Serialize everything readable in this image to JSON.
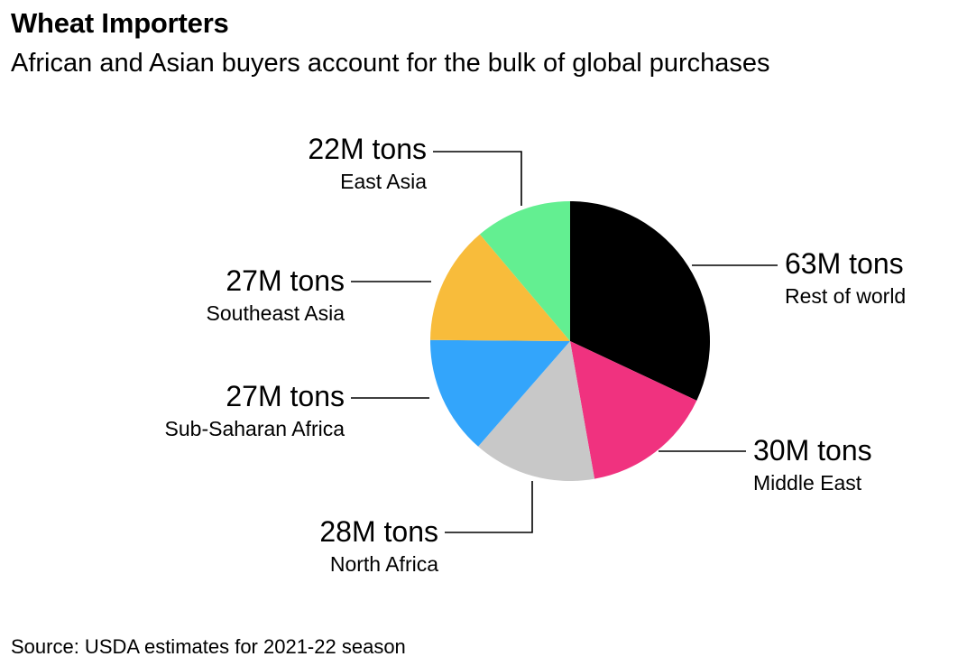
{
  "header": {
    "title": "Wheat Importers",
    "subtitle": "African and Asian buyers account for the bulk of global purchases"
  },
  "footer": {
    "source": "Source: USDA estimates for 2021-22 season"
  },
  "chart_data": {
    "type": "pie",
    "title": "Wheat Importers",
    "subtitle": "African and Asian buyers account for the bulk of global purchases",
    "unit": "M tons",
    "slices": [
      {
        "name": "Rest of world",
        "value": 63,
        "label": "63M tons",
        "color": "#000000"
      },
      {
        "name": "Middle East",
        "value": 30,
        "label": "30M tons",
        "color": "#f0327f"
      },
      {
        "name": "North Africa",
        "value": 28,
        "label": "28M tons",
        "color": "#c8c8c8"
      },
      {
        "name": "Sub-Saharan Africa",
        "value": 27,
        "label": "27M tons",
        "color": "#33a5fb"
      },
      {
        "name": "Southeast Asia",
        "value": 27,
        "label": "27M tons",
        "color": "#f8bc3b"
      },
      {
        "name": "East Asia",
        "value": 22,
        "label": "22M tons",
        "color": "#63ef91"
      }
    ],
    "start": "12 o'clock",
    "direction": "clockwise"
  }
}
